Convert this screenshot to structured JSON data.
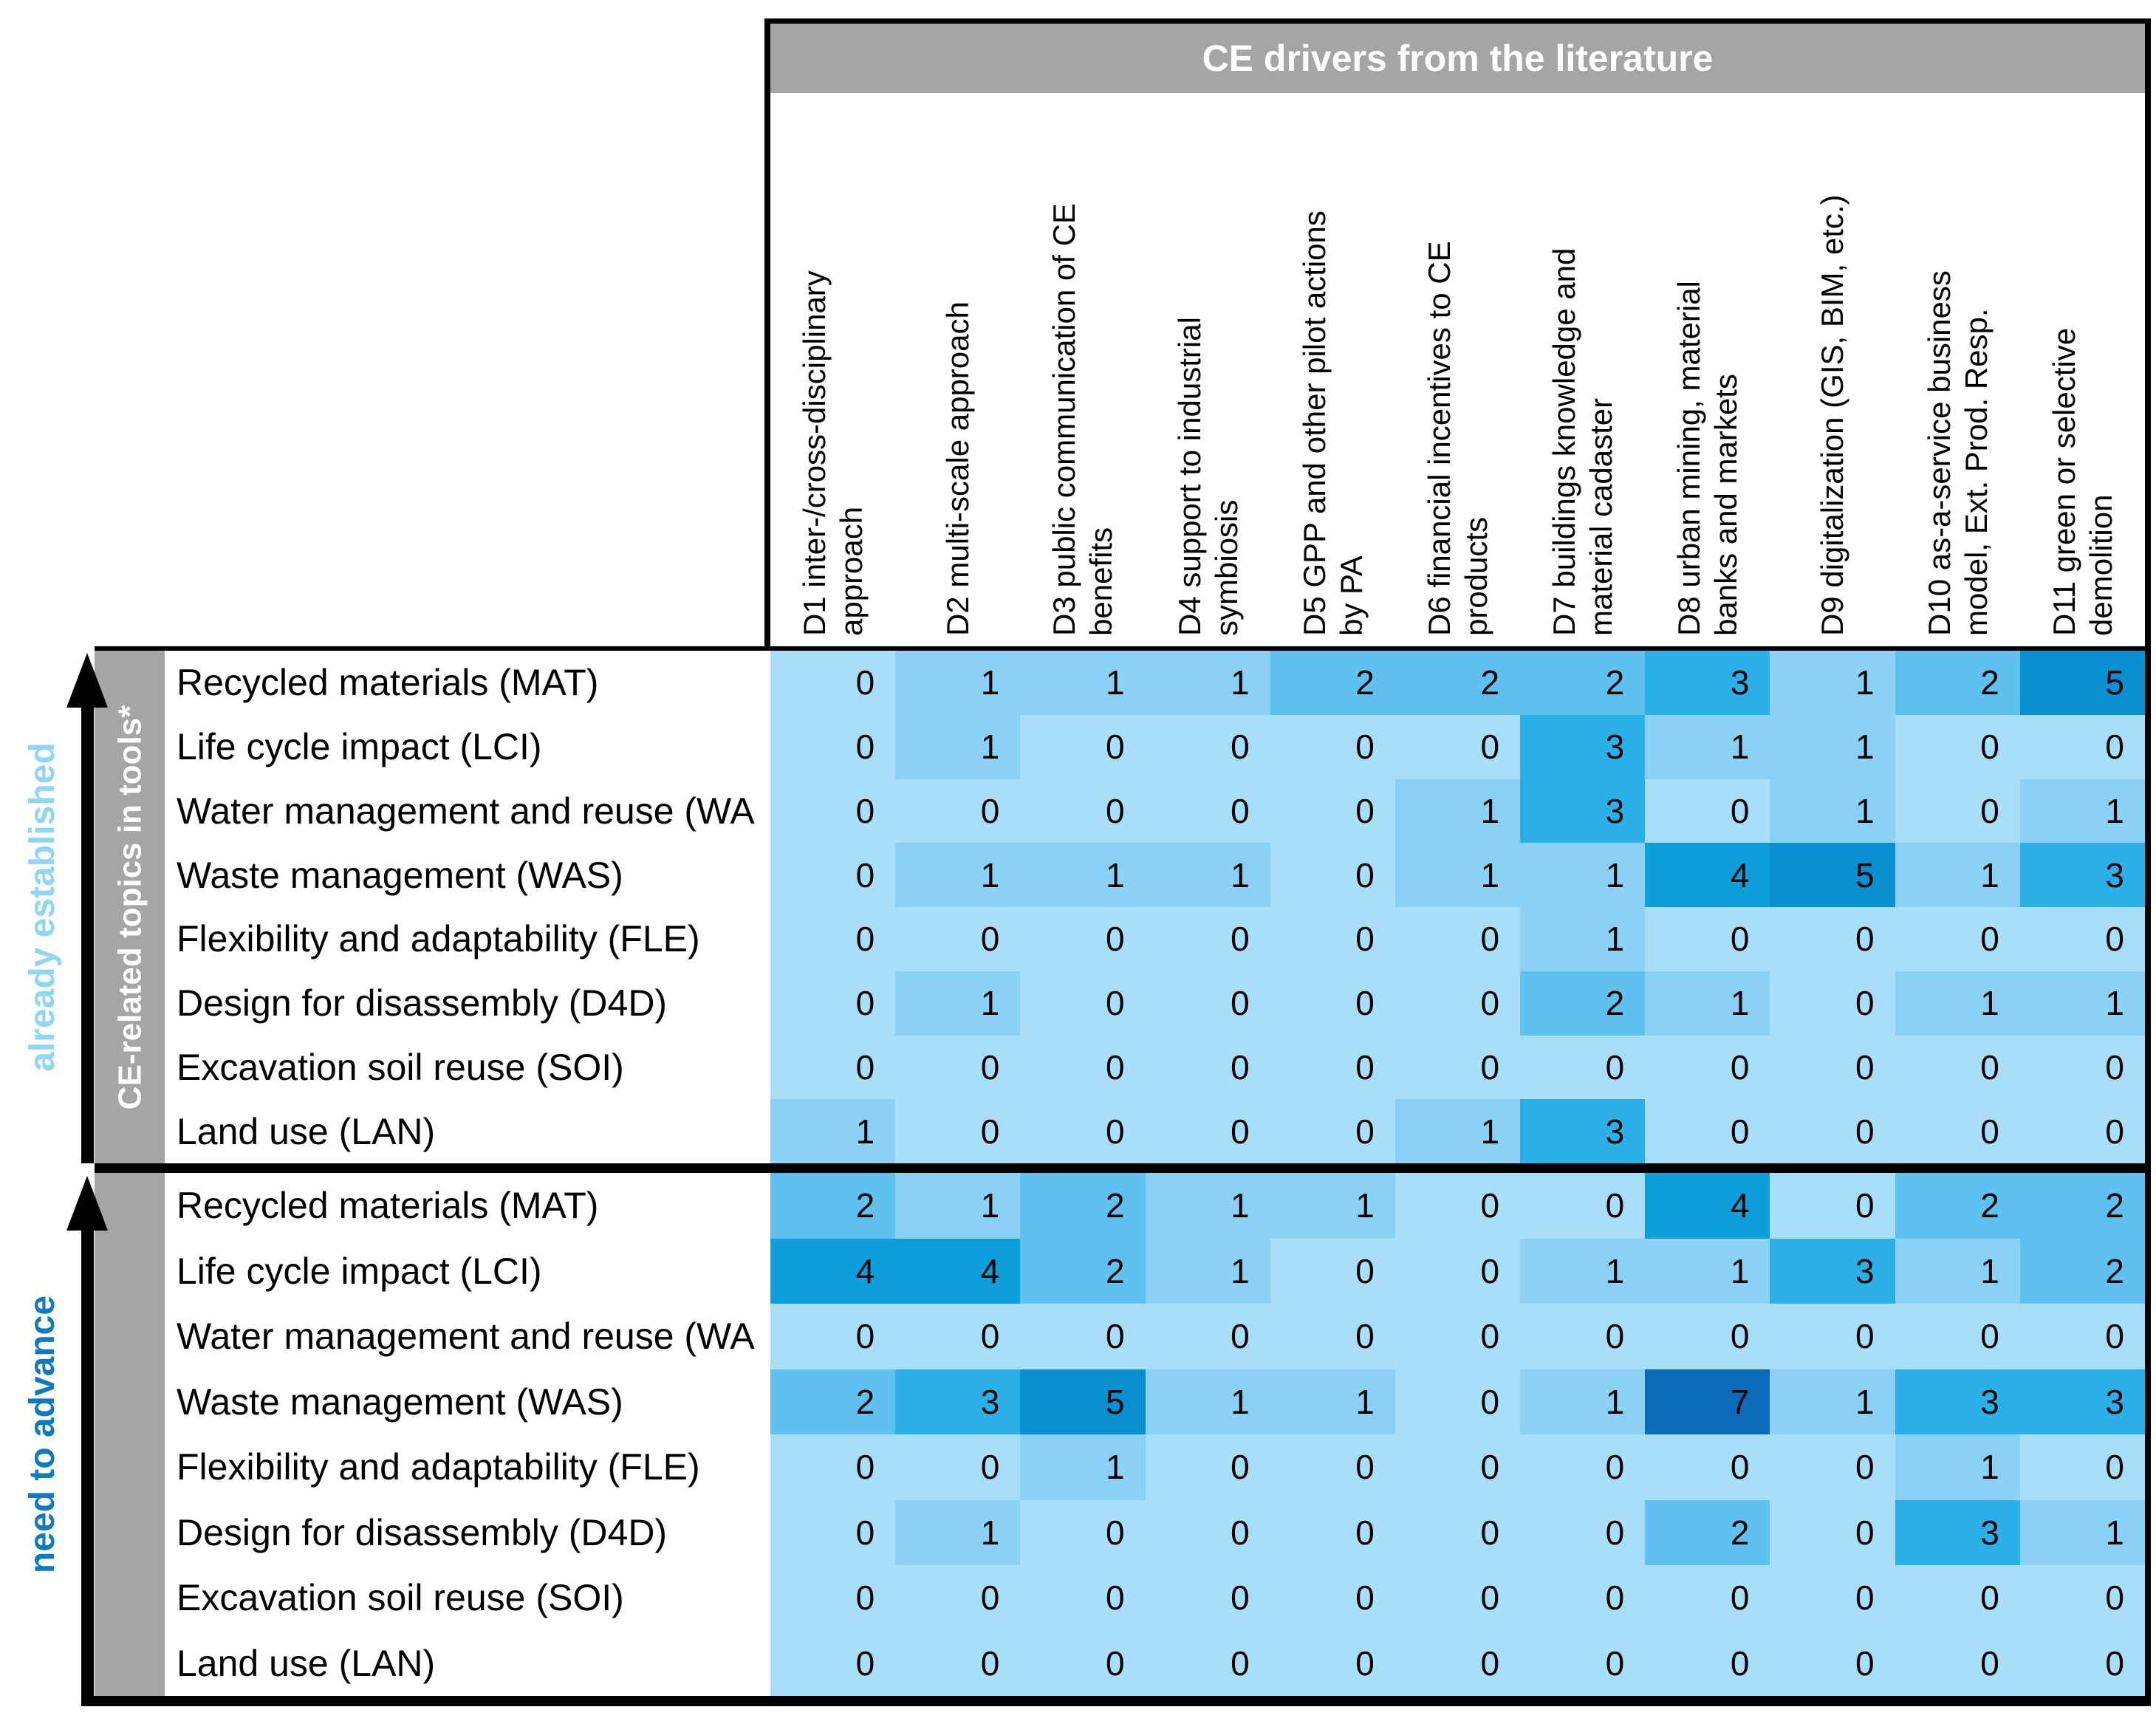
{
  "header": {
    "title": "CE drivers from the literature"
  },
  "side": {
    "established_label": "already established",
    "advance_label": "need to advance",
    "band_label": "CE-related topics in tools*"
  },
  "colors": {
    "band_gray": "#a5a5a5",
    "established_blue": "#8fd5f8",
    "advance_blue": "#0f7ac1",
    "border_black": "#000000",
    "value_colors": {
      "0": "#a9def9",
      "1": "#8bd1f5",
      "2": "#5ec1f0",
      "3": "#2bb1e8",
      "4": "#0c9fd9",
      "5": "#0a8fd0",
      "6": "#0a7dc4",
      "7": "#0b6bb8"
    }
  },
  "chart_data": {
    "type": "heatmap",
    "title": "CE drivers from the literature",
    "x_axis_label": "CE drivers from the literature",
    "y_axis_label": "CE-related topics in tools*",
    "legend_position": "none",
    "columns": [
      {
        "id": "D1",
        "lines": [
          "D1 inter-/cross-disciplinary",
          "approach"
        ]
      },
      {
        "id": "D2",
        "lines": [
          "D2 multi-scale approach"
        ]
      },
      {
        "id": "D3",
        "lines": [
          "D3 public communication of CE",
          "benefits"
        ]
      },
      {
        "id": "D4",
        "lines": [
          "D4 support to industrial",
          "symbiosis"
        ]
      },
      {
        "id": "D5",
        "lines": [
          "D5 GPP and other pilot actions",
          "by PA"
        ]
      },
      {
        "id": "D6",
        "lines": [
          "D6 financial incentives to CE",
          "products"
        ]
      },
      {
        "id": "D7",
        "lines": [
          "D7 buildings knowledge and",
          "material cadaster"
        ]
      },
      {
        "id": "D8",
        "lines": [
          "D8 urban mining, material",
          "banks and markets"
        ]
      },
      {
        "id": "D9",
        "lines": [
          "D9 digitalization (GIS, BIM, etc.)"
        ]
      },
      {
        "id": "D10",
        "lines": [
          "D10 as-a-service business",
          "model, Ext. Prod. Resp."
        ]
      },
      {
        "id": "D11",
        "lines": [
          "D11 green or selective",
          "demolition"
        ]
      }
    ],
    "sections": [
      {
        "name": "already established",
        "rows": [
          {
            "label": "Recycled materials (MAT)",
            "values": [
              0,
              1,
              1,
              1,
              2,
              2,
              2,
              3,
              1,
              2,
              5
            ]
          },
          {
            "label": "Life cycle impact (LCI)",
            "values": [
              0,
              1,
              0,
              0,
              0,
              0,
              3,
              1,
              1,
              0,
              0
            ]
          },
          {
            "label": "Water management and reuse (WA",
            "values": [
              0,
              0,
              0,
              0,
              0,
              1,
              3,
              0,
              1,
              0,
              1
            ]
          },
          {
            "label": "Waste management (WAS)",
            "values": [
              0,
              1,
              1,
              1,
              0,
              1,
              1,
              4,
              5,
              1,
              3
            ]
          },
          {
            "label": "Flexibility and adaptability (FLE)",
            "values": [
              0,
              0,
              0,
              0,
              0,
              0,
              1,
              0,
              0,
              0,
              0
            ]
          },
          {
            "label": "Design for disassembly (D4D)",
            "values": [
              0,
              1,
              0,
              0,
              0,
              0,
              2,
              1,
              0,
              1,
              1
            ]
          },
          {
            "label": "Excavation soil reuse (SOI)",
            "values": [
              0,
              0,
              0,
              0,
              0,
              0,
              0,
              0,
              0,
              0,
              0
            ]
          },
          {
            "label": "Land use (LAN)",
            "values": [
              1,
              0,
              0,
              0,
              0,
              1,
              3,
              0,
              0,
              0,
              0
            ]
          }
        ]
      },
      {
        "name": "need to advance",
        "rows": [
          {
            "label": "Recycled materials (MAT)",
            "values": [
              2,
              1,
              2,
              1,
              1,
              0,
              0,
              4,
              0,
              2,
              2
            ]
          },
          {
            "label": "Life cycle impact (LCI)",
            "values": [
              4,
              4,
              2,
              1,
              0,
              0,
              1,
              1,
              3,
              1,
              2
            ]
          },
          {
            "label": "Water management and reuse (WA",
            "values": [
              0,
              0,
              0,
              0,
              0,
              0,
              0,
              0,
              0,
              0,
              0
            ]
          },
          {
            "label": "Waste management (WAS)",
            "values": [
              2,
              3,
              5,
              1,
              1,
              0,
              1,
              7,
              1,
              3,
              3
            ]
          },
          {
            "label": "Flexibility and adaptability (FLE)",
            "values": [
              0,
              0,
              1,
              0,
              0,
              0,
              0,
              0,
              0,
              1,
              0
            ]
          },
          {
            "label": "Design for disassembly (D4D)",
            "values": [
              0,
              1,
              0,
              0,
              0,
              0,
              0,
              2,
              0,
              3,
              1
            ]
          },
          {
            "label": "Excavation soil reuse (SOI)",
            "values": [
              0,
              0,
              0,
              0,
              0,
              0,
              0,
              0,
              0,
              0,
              0
            ]
          },
          {
            "label": "Land use (LAN)",
            "values": [
              0,
              0,
              0,
              0,
              0,
              0,
              0,
              0,
              0,
              0,
              0
            ]
          }
        ]
      }
    ]
  }
}
